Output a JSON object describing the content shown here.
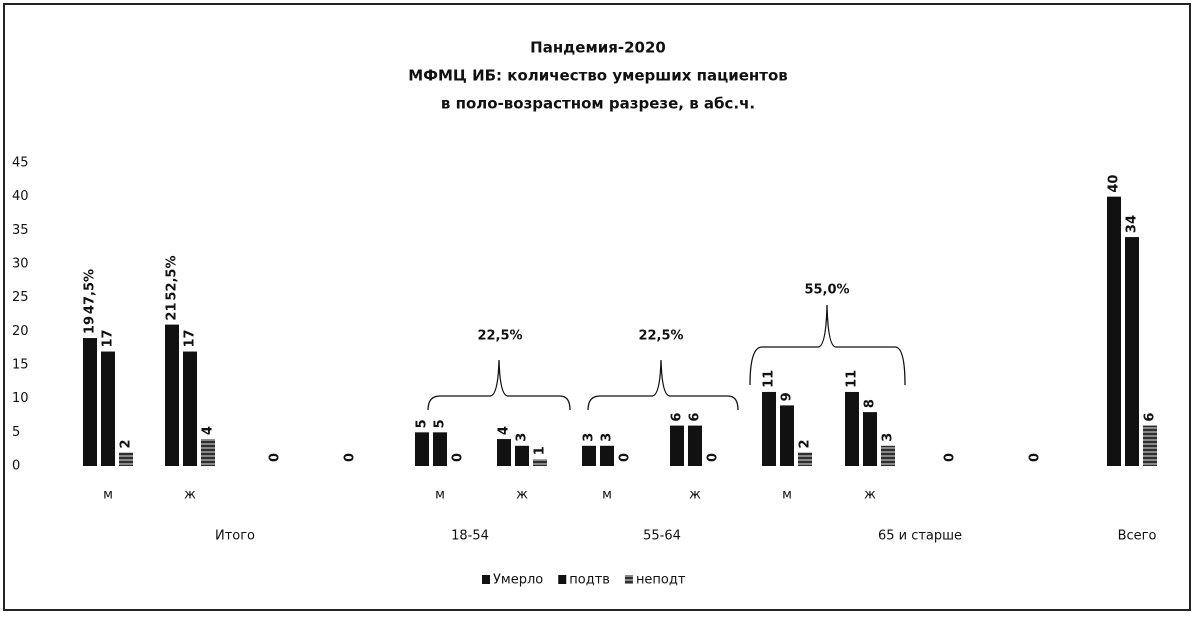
{
  "chart_data": {
    "type": "bar",
    "title": [
      "Пандемия-2020",
      "МФМЦ ИБ: количество умерших пациентов",
      "в поло-возрастном разрезе, в абс.ч."
    ],
    "categories": [
      "м",
      "ж",
      null,
      null,
      "м",
      "ж",
      "м",
      "ж",
      "м",
      "ж",
      null,
      null,
      null
    ],
    "group_labels": [
      "Итого",
      "18-54",
      "55-64",
      "65 и старше",
      "Всего"
    ],
    "series": [
      {
        "name": "Умерло",
        "color": "#111111",
        "values": [
          19,
          21,
          0,
          0,
          5,
          4,
          3,
          6,
          11,
          11,
          0,
          0,
          40
        ]
      },
      {
        "name": "подтв",
        "color": "#111111",
        "values": [
          17,
          17,
          null,
          null,
          5,
          3,
          3,
          6,
          9,
          8,
          null,
          null,
          34
        ]
      },
      {
        "name": "неподт",
        "color": "#555555",
        "values": [
          2,
          4,
          null,
          null,
          0,
          1,
          0,
          0,
          2,
          3,
          null,
          null,
          6
        ]
      }
    ],
    "annotations": [
      "47,5%",
      "52,5%",
      "22,5%",
      "22,5%",
      "55,0%"
    ],
    "ylim": [
      0,
      45
    ],
    "yticks": [
      0,
      5,
      10,
      15,
      20,
      25,
      30,
      35,
      40,
      45
    ],
    "grid": false,
    "legend": "bottom"
  }
}
